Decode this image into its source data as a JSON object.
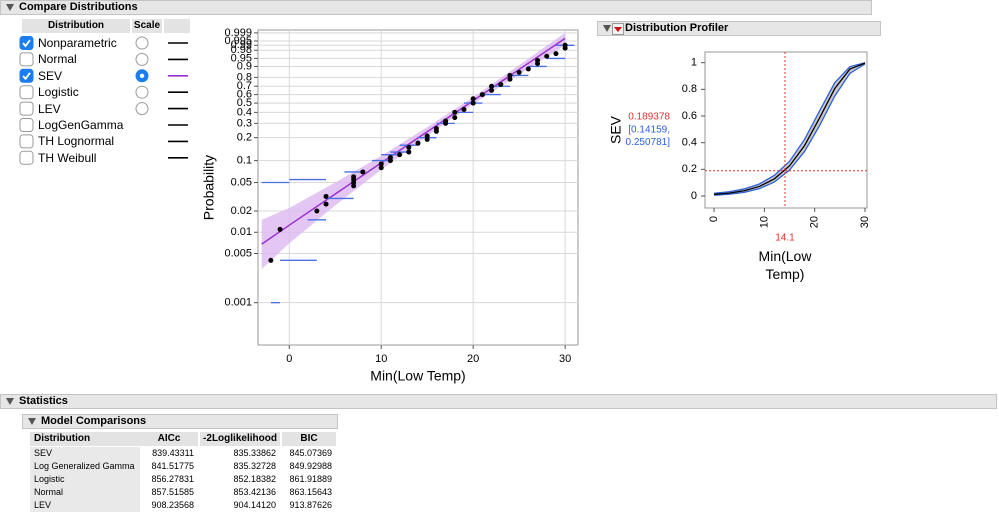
{
  "compare_distributions": {
    "title": "Compare Distributions",
    "columns": [
      "Distribution",
      "Scale"
    ],
    "rows": [
      {
        "name": "Nonparametric",
        "checked": true,
        "scale_option": true,
        "scale_selected": false,
        "line_color": "#000000"
      },
      {
        "name": "Normal",
        "checked": false,
        "scale_option": true,
        "scale_selected": false,
        "line_color": "#000000"
      },
      {
        "name": "SEV",
        "checked": true,
        "scale_option": true,
        "scale_selected": true,
        "line_color": "#9b30d0"
      },
      {
        "name": "Logistic",
        "checked": false,
        "scale_option": true,
        "scale_selected": false,
        "line_color": "#000000"
      },
      {
        "name": "LEV",
        "checked": false,
        "scale_option": true,
        "scale_selected": false,
        "line_color": "#000000"
      },
      {
        "name": "LogGenGamma",
        "checked": false,
        "scale_option": false,
        "scale_selected": false,
        "line_color": "#000000"
      },
      {
        "name": "TH Lognormal",
        "checked": false,
        "scale_option": false,
        "scale_selected": false,
        "line_color": "#000000"
      },
      {
        "name": "TH Weibull",
        "checked": false,
        "scale_option": false,
        "scale_selected": false,
        "line_color": "#000000"
      }
    ]
  },
  "profiler_title": "Distribution Profiler",
  "chart_data": [
    {
      "type": "probability",
      "scale": "sev",
      "y_label": "Probability",
      "x_label": "Min(Low Temp)",
      "xlim": [
        -3.4,
        31.4
      ],
      "xticks": [
        0,
        10,
        20,
        30
      ],
      "ylim": [
        0.00025,
        0.9995
      ],
      "yticks": [
        0.001,
        0.005,
        0.01,
        0.02,
        0.05,
        0.1,
        0.2,
        0.3,
        0.4,
        0.5,
        0.6,
        0.7,
        0.8,
        0.9,
        0.95,
        0.98,
        0.99,
        0.995,
        0.999
      ],
      "grid": true,
      "point_color": "#000000",
      "x": [
        -2,
        -1,
        3,
        4,
        4,
        7,
        7,
        7,
        7,
        8,
        10,
        10,
        11,
        11,
        12,
        13,
        13,
        14,
        15,
        15,
        16,
        16,
        17,
        17,
        18,
        18,
        19,
        20,
        20,
        21,
        22,
        22,
        23,
        24,
        24,
        25,
        26,
        27,
        27,
        28,
        29,
        30,
        30
      ],
      "values": [
        0.004,
        0.011,
        0.02,
        0.025,
        0.032,
        0.045,
        0.05,
        0.055,
        0.06,
        0.07,
        0.08,
        0.09,
        0.1,
        0.11,
        0.12,
        0.13,
        0.15,
        0.17,
        0.19,
        0.21,
        0.24,
        0.26,
        0.3,
        0.32,
        0.35,
        0.4,
        0.43,
        0.5,
        0.55,
        0.6,
        0.65,
        0.7,
        0.72,
        0.78,
        0.82,
        0.85,
        0.88,
        0.92,
        0.94,
        0.96,
        0.97,
        0.985,
        0.99
      ],
      "fit": {
        "color": "#9b30d0",
        "band_color": "#dcb8f0",
        "x": [
          -3,
          0,
          5,
          10,
          15,
          20,
          25,
          30
        ],
        "values": [
          0.0068,
          0.0126,
          0.0346,
          0.093,
          0.237,
          0.528,
          0.876,
          0.9969
        ],
        "lower": [
          0.003,
          0.007,
          0.024,
          0.075,
          0.21,
          0.49,
          0.83,
          0.99
        ],
        "upper": [
          0.015,
          0.022,
          0.05,
          0.115,
          0.27,
          0.57,
          0.91,
          0.999
        ]
      },
      "intervals": {
        "color": "#4a6fe3",
        "lo": [
          -2,
          -1,
          -3,
          0,
          4,
          2,
          6,
          9,
          10,
          11,
          12,
          14,
          16,
          18,
          19,
          21,
          22,
          24,
          26,
          28,
          29
        ],
        "hi": [
          -1,
          3,
          0,
          4,
          7,
          4,
          8,
          11,
          12,
          13,
          14,
          16,
          18,
          20,
          21,
          23,
          24,
          26,
          28,
          30,
          31
        ],
        "values": [
          0.001,
          0.004,
          0.05,
          0.055,
          0.03,
          0.015,
          0.07,
          0.1,
          0.12,
          0.13,
          0.16,
          0.2,
          0.3,
          0.4,
          0.5,
          0.6,
          0.7,
          0.82,
          0.9,
          0.95,
          0.99
        ]
      }
    },
    {
      "type": "profiler",
      "y_label": "SEV",
      "x_label": "Min(Low Temp)",
      "xlim": [
        -1.8,
        30.4
      ],
      "xticks": [
        0,
        10,
        20,
        30
      ],
      "ylim": [
        -0.09,
        1.08
      ],
      "yticks": [
        0,
        0.2,
        0.4,
        0.6,
        0.8,
        1
      ],
      "color": "#000000",
      "band_color": "#2e5fd9",
      "x": [
        0,
        3,
        6,
        9,
        12,
        15,
        18,
        21,
        24,
        27,
        30
      ],
      "values": [
        0.0116,
        0.0214,
        0.0393,
        0.0717,
        0.129,
        0.226,
        0.379,
        0.587,
        0.806,
        0.952,
        0.9965
      ],
      "lower": [
        0.006,
        0.013,
        0.027,
        0.055,
        0.105,
        0.195,
        0.335,
        0.53,
        0.75,
        0.92,
        0.99
      ],
      "upper": [
        0.02,
        0.032,
        0.053,
        0.09,
        0.155,
        0.26,
        0.425,
        0.64,
        0.85,
        0.97,
        0.999
      ],
      "current_x": 14.1,
      "current_y": 0.189378,
      "crosshair_color": "#e03030",
      "ci": [
        {
          "value": 0.14159,
          "label": "[0.14159,"
        },
        {
          "value": 0.250781,
          "label": "0.250781]"
        }
      ]
    }
  ],
  "statistics": {
    "title": "Statistics",
    "model_comparisons": {
      "title": "Model Comparisons",
      "columns": [
        "Distribution",
        "AICc",
        "-2Loglikelihood",
        "BIC"
      ],
      "rows": [
        [
          "SEV",
          "839.43311",
          "835.33862",
          "845.07369"
        ],
        [
          "Log Generalized Gamma",
          "841.51775",
          "835.32728",
          "849.92988"
        ],
        [
          "Logistic",
          "856.27831",
          "852.18382",
          "861.91889"
        ],
        [
          "Normal",
          "857.51585",
          "853.42136",
          "863.15643"
        ],
        [
          "LEV",
          "908.23568",
          "904.14120",
          "913.87626"
        ]
      ]
    }
  }
}
